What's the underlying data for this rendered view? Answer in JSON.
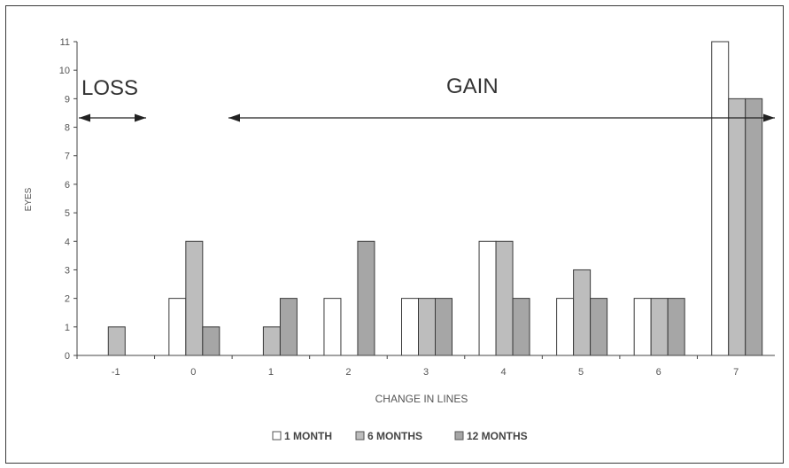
{
  "chart_data": {
    "type": "bar",
    "categories": [
      "-1",
      "0",
      "1",
      "2",
      "3",
      "4",
      "5",
      "6",
      "7"
    ],
    "series": [
      {
        "name": "1 MONTH",
        "values": [
          0,
          2,
          0,
          2,
          2,
          4,
          2,
          2,
          11
        ],
        "color": "#ffffff"
      },
      {
        "name": "6 MONTHS",
        "values": [
          1,
          4,
          1,
          0,
          2,
          4,
          3,
          2,
          9
        ],
        "color": "#bdbdbd"
      },
      {
        "name": "12 MONTHS",
        "values": [
          0,
          1,
          2,
          4,
          2,
          2,
          2,
          2,
          9
        ],
        "color": "#a6a6a6"
      }
    ],
    "xlabel": "CHANGE IN LINES",
    "ylabel": "EYES",
    "ylim": [
      0,
      11
    ],
    "yticks": [
      "0",
      "1",
      "2",
      "3",
      "4",
      "5",
      "6",
      "7",
      "8",
      "9",
      "10",
      "11"
    ],
    "grid": false,
    "legend_position": "bottom",
    "annotations": {
      "loss_label": "LOSS",
      "gain_label": "GAIN"
    }
  }
}
